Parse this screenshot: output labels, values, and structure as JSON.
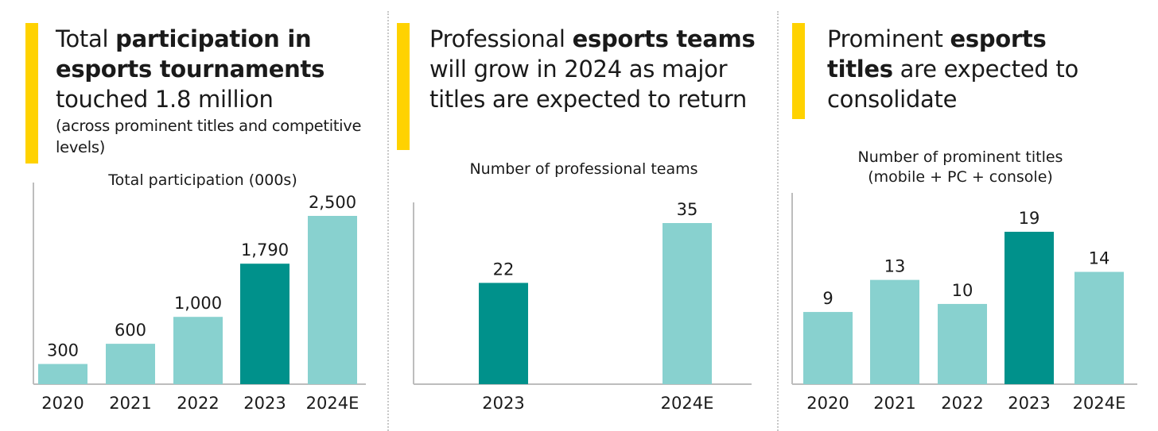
{
  "colors": {
    "accent": "#FFD200",
    "bar": "#88D1CF",
    "bar_highlight": "#00918B",
    "axis": "#bdbdbd"
  },
  "panels": [
    {
      "headline_parts": [
        {
          "text": "Total ",
          "bold": false
        },
        {
          "text": "participation in esports tournaments",
          "bold": true
        },
        {
          "text": " touched 1.8 million",
          "bold": false
        }
      ],
      "subtext": "(across prominent titles and competitive levels)"
    },
    {
      "headline_parts": [
        {
          "text": "Professional ",
          "bold": false
        },
        {
          "text": "esports teams",
          "bold": true
        },
        {
          "text": " will grow in 2024 as major titles are expected to return",
          "bold": false
        }
      ],
      "subtext": ""
    },
    {
      "headline_parts": [
        {
          "text": "Prominent ",
          "bold": false
        },
        {
          "text": "esports titles",
          "bold": true
        },
        {
          "text": " are expected to consolidate",
          "bold": false
        }
      ],
      "subtext": ""
    }
  ],
  "chart_data": [
    {
      "type": "bar",
      "title": "Total participation (000s)",
      "categories": [
        "2020",
        "2021",
        "2022",
        "2023",
        "2024E"
      ],
      "values": [
        300,
        600,
        1000,
        1790,
        2500
      ],
      "value_labels": [
        "300",
        "600",
        "1,000",
        "1,790",
        "2,500"
      ],
      "highlight": [
        false,
        false,
        false,
        true,
        false
      ],
      "ylim": [
        0,
        2500
      ]
    },
    {
      "type": "bar",
      "title": "Number of professional teams",
      "categories": [
        "2023",
        "2024E"
      ],
      "values": [
        22,
        35
      ],
      "value_labels": [
        "22",
        "35"
      ],
      "highlight": [
        true,
        false
      ],
      "ylim": [
        0,
        35
      ]
    },
    {
      "type": "bar",
      "title": "Number of prominent titles (mobile + PC + console)",
      "categories": [
        "2020",
        "2021",
        "2022",
        "2023",
        "2024E"
      ],
      "values": [
        9,
        13,
        10,
        19,
        14
      ],
      "value_labels": [
        "9",
        "13",
        "10",
        "19",
        "14"
      ],
      "highlight": [
        false,
        false,
        false,
        true,
        false
      ],
      "ylim": [
        0,
        19
      ]
    }
  ]
}
